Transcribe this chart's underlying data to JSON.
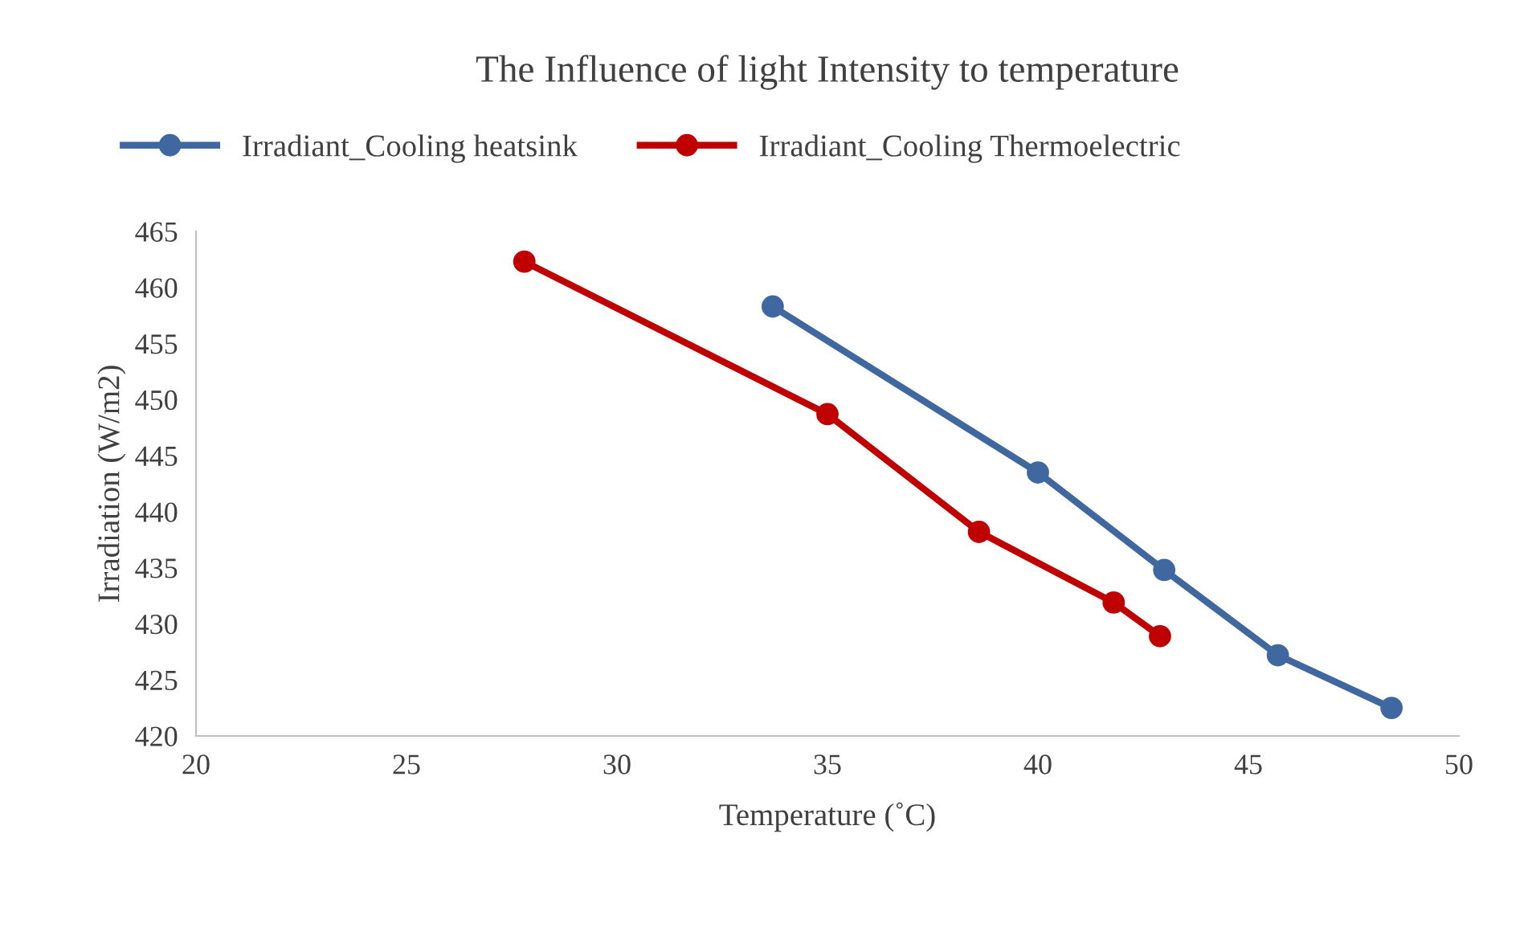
{
  "chart_data": {
    "type": "line",
    "title": "The Influence of light Intensity to temperature",
    "xlabel": "Temperature (˚C)",
    "ylabel": "Irradiation (W/m2)",
    "series": [
      {
        "name": "Irradiant_Cooling heatsink",
        "color": "#3f68a0",
        "x": [
          33.7,
          40.0,
          43.0,
          45.7,
          48.4
        ],
        "values": [
          458.3,
          443.5,
          434.8,
          427.2,
          422.5
        ]
      },
      {
        "name": "Irradiant_Cooling Thermoelectric",
        "color": "#c00000",
        "x": [
          27.8,
          35.0,
          38.6,
          41.8,
          42.9
        ],
        "values": [
          462.3,
          448.7,
          438.2,
          431.9,
          428.9
        ]
      }
    ],
    "xlim": [
      20,
      50
    ],
    "xticks": [
      20,
      25,
      30,
      35,
      40,
      45,
      50
    ],
    "ylim": [
      420,
      465
    ],
    "yticks": [
      420,
      425,
      430,
      435,
      440,
      445,
      450,
      455,
      460,
      465
    ],
    "grid": false,
    "legend": "top",
    "marker": "circle",
    "line_style": "solid"
  }
}
